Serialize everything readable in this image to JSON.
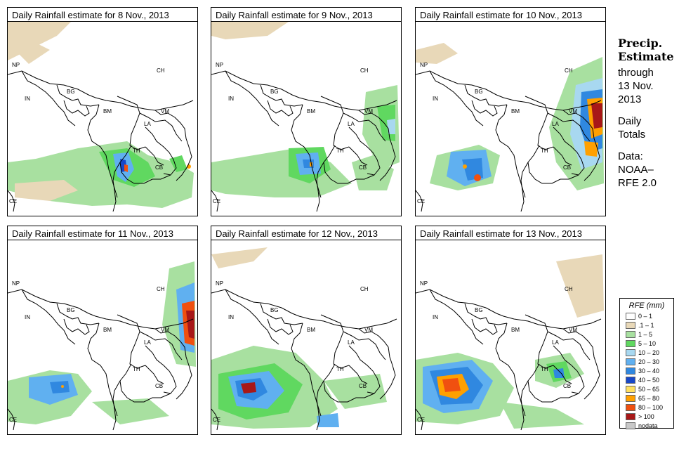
{
  "panels": [
    {
      "title": "Daily Rainfall estimate for  8 Nov., 2013"
    },
    {
      "title": "Daily Rainfall estimate for  9 Nov., 2013"
    },
    {
      "title": "Daily Rainfall estimate for  10 Nov., 2013"
    },
    {
      "title": "Daily Rainfall estimate for  11 Nov., 2013"
    },
    {
      "title": "Daily Rainfall estimate for  12 Nov., 2013"
    },
    {
      "title": "Daily Rainfall estimate for  13 Nov., 2013"
    }
  ],
  "country_labels": {
    "np": "NP",
    "in": "IN",
    "bg": "BG",
    "bm": "BM",
    "ch": "CH",
    "vm": "VM",
    "la": "LA",
    "th": "TH",
    "cb": "CB",
    "ce": "CE"
  },
  "side": {
    "title1": "Precip.",
    "title2": "Estimate",
    "through": "through",
    "date1": "13 Nov.",
    "date2": "2013",
    "daily": "Daily",
    "totals": "Totals",
    "data": "Data:",
    "source1": "NOAA–",
    "source2": "RFE 2.0"
  },
  "legend": {
    "title": "RFE (mm)",
    "items": [
      {
        "label": "0 – 1",
        "color": "#ffffff"
      },
      {
        "label": ".1 – 1",
        "color": "#e8d8b8"
      },
      {
        "label": "1 – 5",
        "color": "#a8e0a0"
      },
      {
        "label": "5 – 10",
        "color": "#60d860"
      },
      {
        "label": "10 – 20",
        "color": "#a8d8f0"
      },
      {
        "label": "20 – 30",
        "color": "#60b0f0"
      },
      {
        "label": "30 – 40",
        "color": "#3088e0"
      },
      {
        "label": "40 – 50",
        "color": "#1848c8"
      },
      {
        "label": "50 – 65",
        "color": "#ffe060"
      },
      {
        "label": "65 – 80",
        "color": "#ffa000"
      },
      {
        "label": "80 – 100",
        "color": "#f05010"
      },
      {
        "label": "> 100",
        "color": "#a81818"
      },
      {
        "label": "nodata",
        "color": "#c8c8c8"
      }
    ]
  }
}
